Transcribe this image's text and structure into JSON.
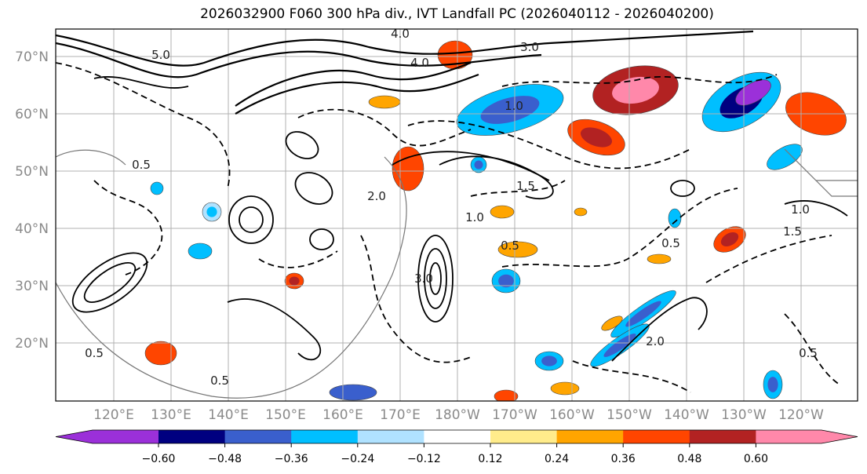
{
  "title": "2026032900 F060 300 hPa div., IVT Landfall PC (2026040112 - 2026040200)",
  "map": {
    "lat_labels": [
      "70°N",
      "60°N",
      "50°N",
      "40°N",
      "30°N",
      "20°N"
    ],
    "lon_labels": [
      "120°E",
      "130°E",
      "140°E",
      "150°E",
      "160°E",
      "170°E",
      "180°W",
      "170°W",
      "160°W",
      "150°W",
      "140°W",
      "130°W",
      "120°W"
    ],
    "gridlines": true,
    "contour_labels": [
      "3.0",
      "4.0",
      "5.0",
      "4.0",
      "1.0",
      "1.5",
      "2.0",
      "0.5",
      "0.5",
      "0.5",
      "3.0",
      "1.0",
      "0.5",
      "0.5",
      "2.0",
      "0.5",
      "1.0",
      "1.5"
    ]
  },
  "colorbar": {
    "ticks": [
      "−0.60",
      "−0.48",
      "−0.36",
      "−0.24",
      "−0.12",
      "0.12",
      "0.24",
      "0.36",
      "0.48",
      "0.60"
    ],
    "colors": [
      "#9b30d9",
      "#000080",
      "#3a5fcd",
      "#00bfff",
      "#b0e2ff",
      "#ffffff",
      "#ffec8b",
      "#ffa500",
      "#ff4500",
      "#b22222",
      "#ff88aa"
    ],
    "extend": "both"
  }
}
